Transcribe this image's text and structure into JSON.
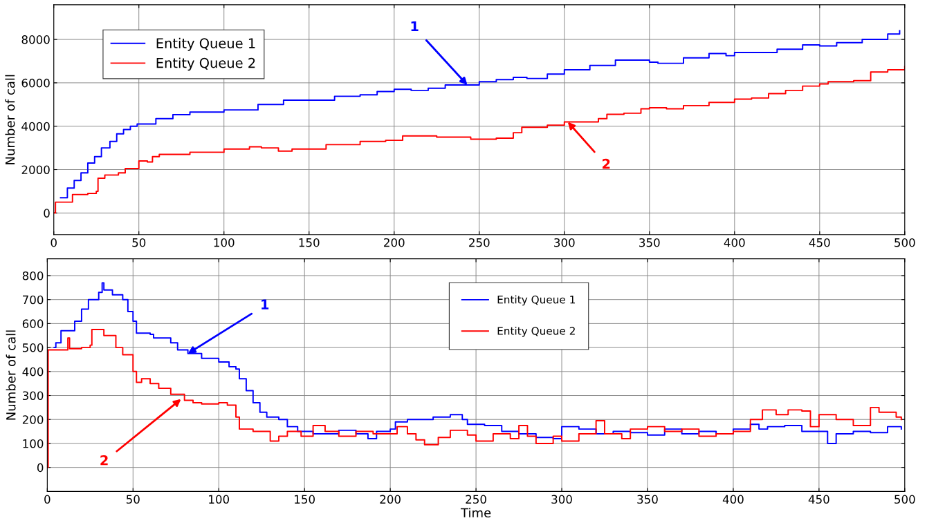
{
  "chart_data": [
    {
      "type": "step",
      "ylabel": "Number of call",
      "xlim": [
        0,
        500
      ],
      "xticks": [
        0,
        50,
        100,
        150,
        200,
        250,
        300,
        350,
        400,
        450,
        500
      ],
      "ylim": [
        -1000,
        9600
      ],
      "yticks": [
        0,
        2000,
        4000,
        6000,
        8000
      ],
      "grid": true,
      "legend": "top left",
      "series": [
        {
          "name": "Entity Queue 1",
          "color": "#0000ff",
          "x": [
            4,
            8,
            12,
            16,
            20,
            24,
            28,
            33,
            37,
            41,
            45,
            49,
            60,
            70,
            80,
            100,
            120,
            135,
            150,
            165,
            180,
            190,
            200,
            210,
            220,
            230,
            240,
            250,
            260,
            270,
            278,
            290,
            300,
            315,
            330,
            350,
            355,
            370,
            385,
            395,
            400,
            410,
            425,
            440,
            450,
            460,
            475,
            490,
            497
          ],
          "values": [
            700,
            1150,
            1500,
            1850,
            2300,
            2600,
            3000,
            3300,
            3650,
            3850,
            4000,
            4100,
            4350,
            4530,
            4650,
            4750,
            5000,
            5200,
            5200,
            5380,
            5450,
            5600,
            5700,
            5650,
            5750,
            5900,
            5900,
            6050,
            6150,
            6250,
            6200,
            6400,
            6600,
            6800,
            7050,
            6950,
            6900,
            7150,
            7350,
            7250,
            7400,
            7400,
            7550,
            7750,
            7700,
            7850,
            8000,
            8250,
            8400
          ]
        },
        {
          "name": "Entity Queue 2",
          "color": "#ff0000",
          "x": [
            0,
            1,
            10,
            11,
            20,
            25,
            26,
            30,
            38,
            42,
            46,
            50,
            55,
            58,
            62,
            80,
            100,
            115,
            122,
            132,
            140,
            150,
            160,
            180,
            195,
            205,
            225,
            245,
            260,
            270,
            275,
            290,
            300,
            320,
            325,
            335,
            345,
            350,
            360,
            370,
            380,
            385,
            400,
            410,
            420,
            430,
            440,
            450,
            455,
            470,
            480,
            490,
            500
          ],
          "values": [
            0,
            500,
            500,
            850,
            900,
            1000,
            1600,
            1750,
            1850,
            2050,
            2050,
            2400,
            2350,
            2600,
            2700,
            2800,
            2950,
            3050,
            3000,
            2850,
            2950,
            2950,
            3150,
            3300,
            3350,
            3550,
            3500,
            3400,
            3450,
            3700,
            3950,
            4050,
            4200,
            4350,
            4550,
            4600,
            4800,
            4850,
            4800,
            4950,
            4950,
            5100,
            5250,
            5300,
            5500,
            5650,
            5850,
            5950,
            6050,
            6100,
            6500,
            6600,
            6750
          ]
        }
      ],
      "annotations": [
        {
          "text": "1",
          "x": 243,
          "y": 5900
        },
        {
          "text": "2",
          "x": 302,
          "y": 4200
        }
      ]
    },
    {
      "type": "step",
      "xlabel": "Time",
      "ylabel": "Number of call",
      "xlim": [
        0,
        500
      ],
      "xticks": [
        0,
        50,
        100,
        150,
        200,
        250,
        300,
        350,
        400,
        450,
        500
      ],
      "ylim": [
        -100,
        870
      ],
      "yticks": [
        0,
        100,
        200,
        300,
        400,
        500,
        600,
        700,
        800
      ],
      "grid": true,
      "legend": "top",
      "series": [
        {
          "name": "Entity Queue 1",
          "color": "#0000ff",
          "x": [
            4,
            5,
            8,
            16,
            20,
            24,
            30,
            32,
            33,
            38,
            44,
            47,
            50,
            52,
            60,
            62,
            70,
            72,
            76,
            82,
            90,
            100,
            106,
            110,
            112,
            116,
            120,
            124,
            128,
            135,
            140,
            146,
            155,
            165,
            170,
            180,
            187,
            192,
            200,
            203,
            210,
            225,
            235,
            242,
            245,
            255,
            265,
            275,
            285,
            295,
            300,
            310,
            320,
            330,
            340,
            350,
            360,
            370,
            380,
            390,
            400,
            410,
            415,
            420,
            430,
            440,
            450,
            455,
            460,
            470,
            480,
            490,
            498
          ],
          "values": [
            500,
            520,
            570,
            610,
            660,
            700,
            730,
            770,
            740,
            720,
            700,
            650,
            610,
            560,
            555,
            540,
            540,
            520,
            490,
            475,
            455,
            440,
            420,
            410,
            370,
            320,
            270,
            230,
            210,
            200,
            170,
            150,
            140,
            140,
            155,
            140,
            120,
            150,
            160,
            190,
            200,
            210,
            220,
            200,
            180,
            175,
            150,
            140,
            125,
            120,
            170,
            160,
            140,
            150,
            145,
            135,
            160,
            140,
            150,
            140,
            160,
            180,
            160,
            170,
            175,
            150,
            150,
            100,
            140,
            150,
            145,
            170,
            160
          ]
        },
        {
          "name": "Entity Queue 2",
          "color": "#ff0000",
          "x": [
            0,
            0.5,
            10,
            12,
            13,
            20,
            25,
            26,
            32,
            33,
            40,
            44,
            50,
            52,
            55,
            60,
            65,
            70,
            72,
            80,
            85,
            90,
            100,
            105,
            110,
            112,
            120,
            130,
            135,
            140,
            148,
            155,
            162,
            170,
            180,
            190,
            200,
            204,
            210,
            215,
            220,
            228,
            235,
            245,
            250,
            260,
            270,
            275,
            280,
            285,
            295,
            300,
            310,
            320,
            325,
            335,
            340,
            350,
            360,
            370,
            380,
            390,
            400,
            410,
            417,
            425,
            432,
            440,
            445,
            450,
            460,
            470,
            480,
            485,
            495,
            498
          ],
          "values": [
            0,
            490,
            490,
            540,
            495,
            500,
            510,
            575,
            575,
            550,
            500,
            470,
            400,
            355,
            370,
            350,
            330,
            330,
            305,
            280,
            270,
            265,
            270,
            260,
            210,
            160,
            150,
            110,
            130,
            150,
            130,
            175,
            150,
            130,
            150,
            140,
            140,
            170,
            140,
            115,
            95,
            125,
            155,
            135,
            110,
            140,
            120,
            175,
            130,
            100,
            130,
            110,
            140,
            195,
            140,
            120,
            160,
            170,
            150,
            160,
            130,
            140,
            150,
            200,
            240,
            220,
            240,
            235,
            170,
            220,
            200,
            175,
            250,
            230,
            210,
            200
          ]
        }
      ],
      "annotations": [
        {
          "text": "1",
          "x": 82,
          "y": 475
        },
        {
          "text": "2",
          "x": 78,
          "y": 285
        }
      ]
    }
  ]
}
